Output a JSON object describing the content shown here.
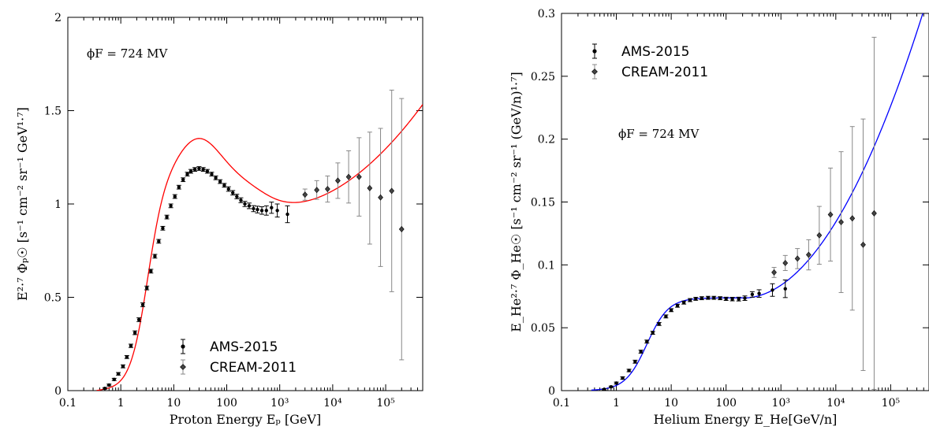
{
  "chart_data": [
    {
      "type": "scatter",
      "xscale": "log",
      "xlim": [
        0.1,
        500000
      ],
      "ylim": [
        0,
        2
      ],
      "xticks": [
        "0.1",
        "1",
        "10",
        "100",
        "10³",
        "10⁴",
        "10⁵"
      ],
      "yticks": [
        "0",
        "0.5",
        "1",
        "1.5",
        "2"
      ],
      "xlabel": "Proton Energy Eₚ [GeV]",
      "ylabel": "E²·⁷ Φₚ☉ [s⁻¹ cm⁻² sr⁻¹ GeV¹·⁷]",
      "annotation": "ϕF = 724 MV",
      "legend_position": "lower-center",
      "grid": false,
      "curve_color": "#ff0000",
      "series": [
        {
          "name": "AMS-2015",
          "marker": "circle",
          "color": "#000000",
          "points": [
            [
              0.5,
              0.012,
              0.004
            ],
            [
              0.6,
              0.03,
              0.005
            ],
            [
              0.75,
              0.06,
              0.006
            ],
            [
              0.9,
              0.09,
              0.007
            ],
            [
              1.1,
              0.13,
              0.008
            ],
            [
              1.3,
              0.18,
              0.008
            ],
            [
              1.55,
              0.24,
              0.009
            ],
            [
              1.85,
              0.31,
              0.01
            ],
            [
              2.2,
              0.38,
              0.01
            ],
            [
              2.6,
              0.46,
              0.01
            ],
            [
              3.1,
              0.55,
              0.01
            ],
            [
              3.7,
              0.64,
              0.01
            ],
            [
              4.4,
              0.72,
              0.01
            ],
            [
              5.2,
              0.8,
              0.01
            ],
            [
              6.2,
              0.87,
              0.01
            ],
            [
              7.4,
              0.93,
              0.01
            ],
            [
              8.8,
              0.99,
              0.01
            ],
            [
              10.5,
              1.04,
              0.01
            ],
            [
              12.5,
              1.09,
              0.01
            ],
            [
              15,
              1.13,
              0.01
            ],
            [
              18,
              1.16,
              0.01
            ],
            [
              21,
              1.175,
              0.01
            ],
            [
              25,
              1.185,
              0.01
            ],
            [
              30,
              1.19,
              0.01
            ],
            [
              36,
              1.185,
              0.01
            ],
            [
              43,
              1.175,
              0.01
            ],
            [
              52,
              1.16,
              0.01
            ],
            [
              62,
              1.14,
              0.01
            ],
            [
              75,
              1.12,
              0.01
            ],
            [
              90,
              1.1,
              0.01
            ],
            [
              108,
              1.08,
              0.012
            ],
            [
              130,
              1.06,
              0.012
            ],
            [
              155,
              1.04,
              0.012
            ],
            [
              185,
              1.02,
              0.013
            ],
            [
              220,
              1.0,
              0.014
            ],
            [
              265,
              0.99,
              0.015
            ],
            [
              320,
              0.975,
              0.016
            ],
            [
              380,
              0.97,
              0.018
            ],
            [
              460,
              0.965,
              0.02
            ],
            [
              560,
              0.965,
              0.025
            ],
            [
              700,
              0.98,
              0.03
            ],
            [
              900,
              0.965,
              0.035
            ],
            [
              1400,
              0.945,
              0.045
            ]
          ]
        },
        {
          "name": "CREAM-2011",
          "marker": "diamond",
          "color": "#000000",
          "points": [
            [
              3000,
              1.05,
              0.03
            ],
            [
              5000,
              1.075,
              0.05
            ],
            [
              8000,
              1.08,
              0.07
            ],
            [
              12500,
              1.125,
              0.095
            ],
            [
              20000,
              1.145,
              0.14
            ],
            [
              31500,
              1.145,
              0.21
            ],
            [
              50000,
              1.085,
              0.3
            ],
            [
              80000,
              1.035,
              0.37
            ],
            [
              130000,
              1.07,
              0.54
            ],
            [
              200000,
              0.865,
              0.7
            ]
          ]
        }
      ]
    },
    {
      "type": "scatter",
      "xscale": "log",
      "xlim": [
        0.1,
        500000
      ],
      "ylim": [
        0,
        0.3
      ],
      "xticks": [
        "0.1",
        "1",
        "10",
        "100",
        "10³",
        "10⁴",
        "10⁵"
      ],
      "yticks": [
        "0",
        "0.05",
        "0.1",
        "0.15",
        "0.2",
        "0.25",
        "0.3"
      ],
      "xlabel": "Helium Energy E_He[GeV/n]",
      "ylabel": "E_He²·⁷ Φ_He☉ [s⁻¹ cm⁻² sr⁻¹ (GeV/n)¹·⁷]",
      "annotation": "ϕF = 724 MV",
      "legend_position": "top-left",
      "grid": false,
      "curve_color": "#0000ff",
      "series": [
        {
          "name": "AMS-2015",
          "marker": "circle",
          "color": "#000000",
          "points": [
            [
              0.6,
              0.001,
              0.0005
            ],
            [
              0.8,
              0.003,
              0.0006
            ],
            [
              1.0,
              0.006,
              0.0008
            ],
            [
              1.3,
              0.01,
              0.001
            ],
            [
              1.7,
              0.016,
              0.001
            ],
            [
              2.2,
              0.023,
              0.0012
            ],
            [
              2.8,
              0.031,
              0.0012
            ],
            [
              3.6,
              0.039,
              0.0012
            ],
            [
              4.6,
              0.046,
              0.0012
            ],
            [
              6,
              0.053,
              0.0012
            ],
            [
              8,
              0.059,
              0.0012
            ],
            [
              10,
              0.064,
              0.0012
            ],
            [
              13,
              0.0675,
              0.0012
            ],
            [
              17,
              0.07,
              0.0012
            ],
            [
              22,
              0.072,
              0.0012
            ],
            [
              28,
              0.073,
              0.0012
            ],
            [
              36,
              0.0735,
              0.0012
            ],
            [
              47,
              0.0738,
              0.0012
            ],
            [
              60,
              0.0738,
              0.0012
            ],
            [
              78,
              0.0735,
              0.0012
            ],
            [
              100,
              0.073,
              0.0013
            ],
            [
              130,
              0.0728,
              0.0014
            ],
            [
              170,
              0.0728,
              0.0015
            ],
            [
              220,
              0.0735,
              0.0018
            ],
            [
              300,
              0.0765,
              0.0022
            ],
            [
              400,
              0.0772,
              0.003
            ],
            [
              700,
              0.08,
              0.005
            ],
            [
              1200,
              0.081,
              0.007
            ]
          ]
        },
        {
          "name": "CREAM-2011",
          "marker": "diamond",
          "color": "#000000",
          "points": [
            [
              750,
              0.094,
              0.004
            ],
            [
              1200,
              0.1015,
              0.006
            ],
            [
              2000,
              0.105,
              0.008
            ],
            [
              3200,
              0.108,
              0.012
            ],
            [
              5000,
              0.1235,
              0.023
            ],
            [
              8000,
              0.14,
              0.037
            ],
            [
              12500,
              0.134,
              0.056
            ],
            [
              20000,
              0.137,
              0.073
            ],
            [
              31500,
              0.116,
              0.1
            ],
            [
              50000,
              0.141,
              0.14
            ]
          ]
        }
      ]
    }
  ]
}
